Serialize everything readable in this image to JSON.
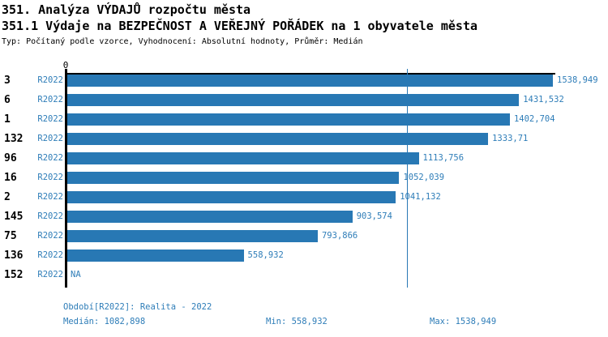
{
  "header": {
    "title": "351. Analýza VÝDAJŮ rozpočtu města",
    "subtitle": "351.1 Výdaje na BEZPEČNOST A VEŘEJNÝ POŘÁDEK na 1 obyvatele města",
    "meta": "Typ: Počítaný podle vzorce, Vyhodnocení: Absolutní hodnoty, Průměr: Medián"
  },
  "colors": {
    "bar": "#2878b4",
    "blue_text": "#2e7db8",
    "axis": "#000000"
  },
  "axis": {
    "zero_label": "0"
  },
  "chart_data": {
    "type": "bar",
    "orientation": "horizontal",
    "title": "351.1 Výdaje na BEZPEČNOST A VEŘEJNÝ POŘÁDEK na 1 obyvatele města",
    "categories": [
      "3",
      "6",
      "1",
      "132",
      "96",
      "16",
      "2",
      "145",
      "75",
      "136",
      "152"
    ],
    "series_label": "R2022",
    "values": [
      1538.949,
      1431.532,
      1402.704,
      1333.71,
      1113.756,
      1052.039,
      1041.132,
      903.574,
      793.866,
      558.932,
      null
    ],
    "value_labels": [
      "1538,949",
      "1431,532",
      "1402,704",
      "1333,71",
      "1113,756",
      "1052,039",
      "1041,132",
      "903,574",
      "793,866",
      "558,932",
      "NA"
    ],
    "xlim": [
      0,
      1538.949
    ],
    "median": 1082.898,
    "grid": false,
    "legend_position": "none"
  },
  "footer": {
    "period": "Období[R2022]: Realita - 2022",
    "median": "Medián: 1082,898",
    "min": "Min: 558,932",
    "max": "Max: 1538,949"
  }
}
